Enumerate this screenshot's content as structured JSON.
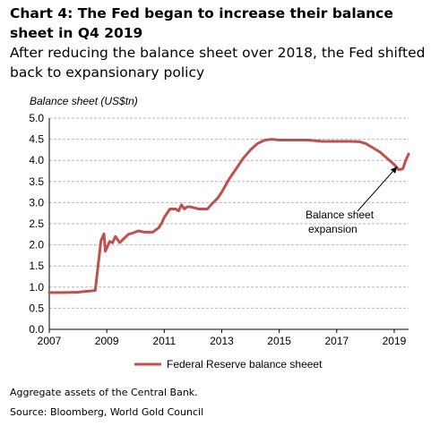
{
  "header": {
    "title": "Chart 4: The Fed began to increase their balance sheet in Q4 2019",
    "subtitle": "After reducing the balance sheet over 2018, the Fed shifted back to expansionary policy"
  },
  "footer": {
    "note": "Aggregate assets of the Central Bank.",
    "source": "Source: Bloomberg, World Gold Council"
  },
  "colors": {
    "series": "#c0504d",
    "grid": "#b8b8b8"
  },
  "chart_data": {
    "type": "line",
    "ylabel": "Balance sheet (US$tn)",
    "xlabel": "",
    "xlim": [
      2007,
      2019.5
    ],
    "ylim": [
      0,
      5
    ],
    "x_ticks": [
      "2007",
      "2009",
      "2011",
      "2013",
      "2015",
      "2017",
      "2019"
    ],
    "y_ticks": [
      "0.0",
      "0.5",
      "1.0",
      "1.5",
      "2.0",
      "2.5",
      "3.0",
      "3.5",
      "4.0",
      "4.5",
      "5.0"
    ],
    "grid": "horizontal dashed",
    "legend": "bottom-center",
    "annotation": {
      "text_line1": "Balance sheet",
      "text_line2": "expansion",
      "arrow_to": {
        "x": 2019.1,
        "y": 3.85
      }
    },
    "series": [
      {
        "name": "Federal Reserve balance sheeet",
        "x": [
          2007.0,
          2007.5,
          2008.0,
          2008.3,
          2008.6,
          2008.8,
          2008.9,
          2008.95,
          2009.1,
          2009.2,
          2009.3,
          2009.45,
          2009.6,
          2009.75,
          2009.9,
          2010.1,
          2010.3,
          2010.6,
          2010.8,
          2010.9,
          2011.0,
          2011.2,
          2011.4,
          2011.5,
          2011.6,
          2011.7,
          2011.8,
          2011.9,
          2012.2,
          2012.5,
          2012.7,
          2012.85,
          2013.0,
          2013.25,
          2013.5,
          2013.75,
          2014.0,
          2014.25,
          2014.5,
          2014.75,
          2015.0,
          2015.5,
          2016.0,
          2016.5,
          2017.0,
          2017.5,
          2017.8,
          2018.0,
          2018.25,
          2018.5,
          2018.75,
          2019.0,
          2019.15,
          2019.3,
          2019.4,
          2019.5
        ],
        "values": [
          0.87,
          0.87,
          0.88,
          0.9,
          0.92,
          2.1,
          2.26,
          1.85,
          2.08,
          2.05,
          2.2,
          2.05,
          2.15,
          2.25,
          2.28,
          2.33,
          2.3,
          2.3,
          2.4,
          2.5,
          2.65,
          2.85,
          2.85,
          2.8,
          2.95,
          2.85,
          2.9,
          2.9,
          2.85,
          2.85,
          3.0,
          3.1,
          3.25,
          3.55,
          3.8,
          4.05,
          4.25,
          4.4,
          4.48,
          4.5,
          4.48,
          4.48,
          4.48,
          4.45,
          4.45,
          4.45,
          4.44,
          4.4,
          4.3,
          4.2,
          4.05,
          3.9,
          3.78,
          3.8,
          4.0,
          4.15
        ]
      }
    ]
  }
}
